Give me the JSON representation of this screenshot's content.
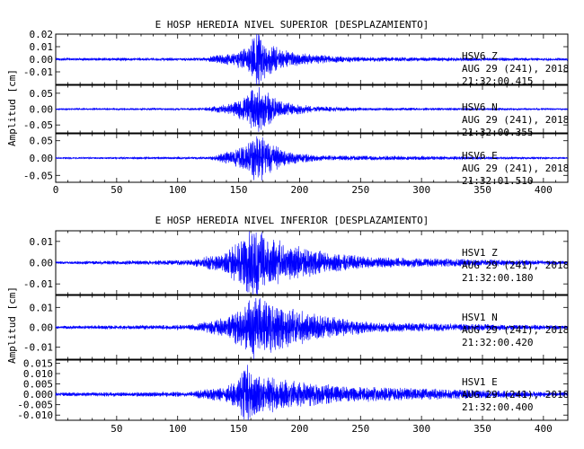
{
  "chart_data": [
    {
      "type": "line",
      "title": "E HOSP HEREDIA NIVEL SUPERIOR [DESPLAZAMIENTO]",
      "ylabel": "Amplitud [cm]",
      "xlim": [
        0,
        420
      ],
      "xticks": [
        "0",
        "50",
        "100",
        "150",
        "200",
        "250",
        "300",
        "350",
        "400"
      ],
      "xtick_values": [
        0,
        50,
        100,
        150,
        200,
        250,
        300,
        350,
        400
      ],
      "line_color": "#0000ff",
      "panels": [
        {
          "station": "HSV6",
          "component": "Z",
          "date": "AUG 29 (241), 2018",
          "time": "21:32:00.415",
          "ylim": [
            -0.02,
            0.02
          ],
          "yticks": [
            0.02,
            0.01,
            0.0,
            -0.01
          ],
          "ytick_labels": [
            "0.02",
            "0.01",
            "0.00",
            "-0.01"
          ],
          "envelope": [
            [
              0,
              0.0008
            ],
            [
              120,
              0.001
            ],
            [
              145,
              0.004
            ],
            [
              158,
              0.008
            ],
            [
              165,
              0.018
            ],
            [
              172,
              0.012
            ],
            [
              185,
              0.006
            ],
            [
              210,
              0.003
            ],
            [
              250,
              0.0015
            ],
            [
              420,
              0.0008
            ]
          ]
        },
        {
          "station": "HSV6",
          "component": "N",
          "date": "AUG 29 (241), 2018",
          "time": "21:32:00.355",
          "ylim": [
            -0.075,
            0.075
          ],
          "yticks": [
            0.05,
            0.0,
            -0.05
          ],
          "ytick_labels": [
            "0.05",
            "0.00",
            "-0.05"
          ],
          "envelope": [
            [
              0,
              0.002
            ],
            [
              120,
              0.003
            ],
            [
              145,
              0.015
            ],
            [
              158,
              0.04
            ],
            [
              165,
              0.065
            ],
            [
              172,
              0.045
            ],
            [
              185,
              0.02
            ],
            [
              210,
              0.008
            ],
            [
              250,
              0.004
            ],
            [
              420,
              0.002
            ]
          ]
        },
        {
          "station": "HSV6",
          "component": "E",
          "date": "AUG 29 (241), 2018",
          "time": "21:32:01.510",
          "ylim": [
            -0.07,
            0.07
          ],
          "yticks": [
            0.05,
            0.0,
            -0.05
          ],
          "ytick_labels": [
            "0.05",
            "0.00",
            "-0.05"
          ],
          "envelope": [
            [
              0,
              0.002
            ],
            [
              125,
              0.003
            ],
            [
              135,
              0.01
            ],
            [
              150,
              0.02
            ],
            [
              162,
              0.05
            ],
            [
              167,
              0.06
            ],
            [
              175,
              0.035
            ],
            [
              190,
              0.015
            ],
            [
              220,
              0.006
            ],
            [
              420,
              0.002
            ]
          ]
        }
      ]
    },
    {
      "type": "line",
      "title": "E HOSP HEREDIA NIVEL INFERIOR [DESPLAZAMIENTO]",
      "ylabel": "Amplitud [cm]",
      "xlim": [
        0,
        420
      ],
      "xticks": [
        "50",
        "100",
        "150",
        "200",
        "250",
        "300",
        "350",
        "400"
      ],
      "xtick_values": [
        50,
        100,
        150,
        200,
        250,
        300,
        350,
        400
      ],
      "line_color": "#0000ff",
      "panels": [
        {
          "station": "HSV1",
          "component": "Z",
          "date": "AUG 29 (241), 2018",
          "time": "21:32:00.180",
          "ylim": [
            -0.015,
            0.015
          ],
          "yticks": [
            0.01,
            0.0,
            -0.01
          ],
          "ytick_labels": [
            "0.01",
            "0.00",
            "-0.01"
          ],
          "envelope": [
            [
              0,
              0.0005
            ],
            [
              110,
              0.001
            ],
            [
              140,
              0.004
            ],
            [
              155,
              0.01
            ],
            [
              163,
              0.015
            ],
            [
              172,
              0.011
            ],
            [
              190,
              0.007
            ],
            [
              220,
              0.004
            ],
            [
              260,
              0.002
            ],
            [
              420,
              0.0007
            ]
          ]
        },
        {
          "station": "HSV1",
          "component": "N",
          "date": "AUG 29 (241), 2018",
          "time": "21:32:00.420",
          "ylim": [
            -0.016,
            0.016
          ],
          "yticks": [
            0.01,
            0.0,
            -0.01
          ],
          "ytick_labels": [
            "0.01",
            "0.00",
            "-0.01"
          ],
          "envelope": [
            [
              0,
              0.0006
            ],
            [
              110,
              0.001
            ],
            [
              140,
              0.004
            ],
            [
              155,
              0.009
            ],
            [
              163,
              0.014
            ],
            [
              172,
              0.011
            ],
            [
              190,
              0.008
            ],
            [
              215,
              0.005
            ],
            [
              260,
              0.002
            ],
            [
              420,
              0.0008
            ]
          ]
        },
        {
          "station": "HSV1",
          "component": "E",
          "date": "AUG 29 (241), 2018",
          "time": "21:32:00.400",
          "ylim": [
            -0.0125,
            0.0165
          ],
          "yticks": [
            0.015,
            0.01,
            0.005,
            0.0,
            -0.005,
            -0.01
          ],
          "ytick_labels": [
            "0.015",
            "0.010",
            "0.005",
            "0.000",
            "-0.005",
            "-0.010"
          ],
          "envelope": [
            [
              0,
              0.0007
            ],
            [
              110,
              0.001
            ],
            [
              140,
              0.003
            ],
            [
              150,
              0.006
            ],
            [
              157,
              0.013
            ],
            [
              163,
              0.009
            ],
            [
              175,
              0.007
            ],
            [
              200,
              0.005
            ],
            [
              240,
              0.003
            ],
            [
              420,
              0.0008
            ]
          ]
        }
      ]
    }
  ]
}
